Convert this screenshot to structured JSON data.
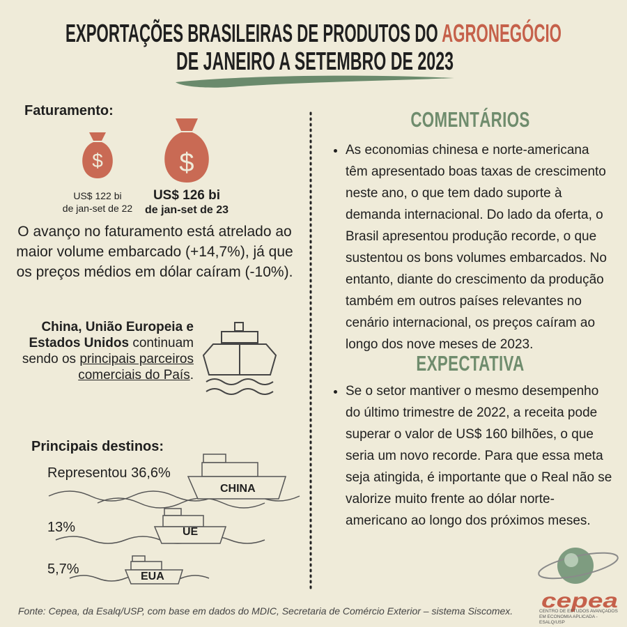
{
  "header": {
    "title_part1": "EXPORTAÇÕES BRASILEIRAS DE PRODUTOS DO ",
    "title_highlight": "AGRONEGÓCIO",
    "title_line2": "DE JANEIRO A SETEMBRO DE 2023"
  },
  "revenue": {
    "heading": "Faturamento:",
    "previous": {
      "amount": "US$ 122 bi",
      "period": "de jan-set de 22"
    },
    "current": {
      "amount": "US$ 126 bi",
      "period": "de jan-set de 23"
    },
    "text": "O avanço no faturamento está atrelado ao maior volume embarcado (+14,7%), já que os preços médios em dólar caíram (-10%)."
  },
  "partners": {
    "bold": "China, União Europeia e Estados Unidos",
    "text": "continuam sendo os",
    "underlined": "principais parceiros comerciais do País",
    "end": "."
  },
  "destinations": {
    "heading": "Principais destinos:",
    "items": [
      {
        "share": "Representou 36,6%",
        "name": "CHINA"
      },
      {
        "share": "13%",
        "name": "UE"
      },
      {
        "share": "5,7%",
        "name": "EUA"
      }
    ]
  },
  "comments": {
    "heading": "COMENTÁRIOS",
    "text": "As economias chinesa e norte-americana têm apresentado boas taxas de crescimento neste ano, o que tem dado suporte à demanda internacional. Do lado da oferta, o Brasil apresentou produção recorde, o que sustentou os bons volumes embarcados. No entanto, diante do crescimento da produção também em outros países relevantes no cenário internacional, os preços caíram ao longo dos nove meses de 2023."
  },
  "outlook": {
    "heading": "EXPECTATIVA",
    "text": "Se o setor mantiver o mesmo desempenho do último trimestre de 2022, a receita pode superar o valor de US$ 160 bilhões, o que seria um novo recorde. Para que essa meta seja atingida, é importante que o Real não se valorize muito frente ao dólar norte-americano ao longo dos próximos meses."
  },
  "footer": {
    "source": "Fonte: Cepea, da Esalq/USP, com base em dados do MDIC, Secretaria de Comércio Exterior – sistema Siscomex.",
    "logo": "cepea",
    "logo_caption": "CENTRO DE ESTUDOS AVANÇADOS EM ECONOMIA APLICADA - ESALQ/USP"
  }
}
